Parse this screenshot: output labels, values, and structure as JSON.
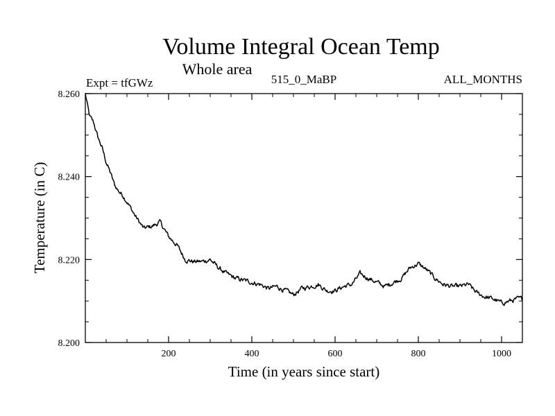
{
  "chart_data": {
    "type": "line",
    "title": "Volume Integral Ocean Temp",
    "subtitle": "Whole area",
    "expt_label": "Expt = tfGWz",
    "run_label": "515_0_MaBP",
    "months_label": "ALL_MONTHS",
    "xlabel": "Time (in years since start)",
    "ylabel": "Temperature (in C)",
    "xlim": [
      0,
      1050
    ],
    "ylim": [
      8.2,
      8.26
    ],
    "xticks": [
      200,
      400,
      600,
      800,
      1000
    ],
    "xtick_labels": [
      "200",
      "400",
      "600",
      "800",
      "1000"
    ],
    "yticks": [
      8.2,
      8.22,
      8.24,
      8.26
    ],
    "ytick_labels": [
      "8.200",
      "8.220",
      "8.240",
      "8.260"
    ],
    "grid": false,
    "series": [
      {
        "name": "Volume integral ocean temperature",
        "x": [
          0,
          10,
          20,
          30,
          40,
          50,
          60,
          70,
          80,
          90,
          100,
          120,
          140,
          160,
          180,
          200,
          220,
          240,
          260,
          280,
          300,
          320,
          340,
          360,
          380,
          400,
          420,
          440,
          460,
          480,
          500,
          520,
          540,
          560,
          580,
          600,
          620,
          640,
          660,
          680,
          700,
          720,
          740,
          760,
          780,
          800,
          820,
          840,
          860,
          880,
          900,
          920,
          940,
          960,
          980,
          1000,
          1020,
          1040,
          1050
        ],
        "values": [
          8.26,
          8.2545,
          8.253,
          8.2495,
          8.247,
          8.2435,
          8.241,
          8.238,
          8.2365,
          8.2355,
          8.234,
          8.2305,
          8.2275,
          8.228,
          8.229,
          8.2255,
          8.2235,
          8.22,
          8.2195,
          8.2195,
          8.22,
          8.218,
          8.2165,
          8.2155,
          8.215,
          8.2145,
          8.214,
          8.213,
          8.2135,
          8.2125,
          8.2115,
          8.213,
          8.2135,
          8.214,
          8.2125,
          8.2125,
          8.2135,
          8.214,
          8.2165,
          8.2155,
          8.2145,
          8.2135,
          8.2145,
          8.2155,
          8.218,
          8.219,
          8.2175,
          8.2155,
          8.214,
          8.2135,
          8.2135,
          8.214,
          8.212,
          8.211,
          8.2105,
          8.2095,
          8.21,
          8.2105,
          8.2105
        ]
      }
    ]
  }
}
